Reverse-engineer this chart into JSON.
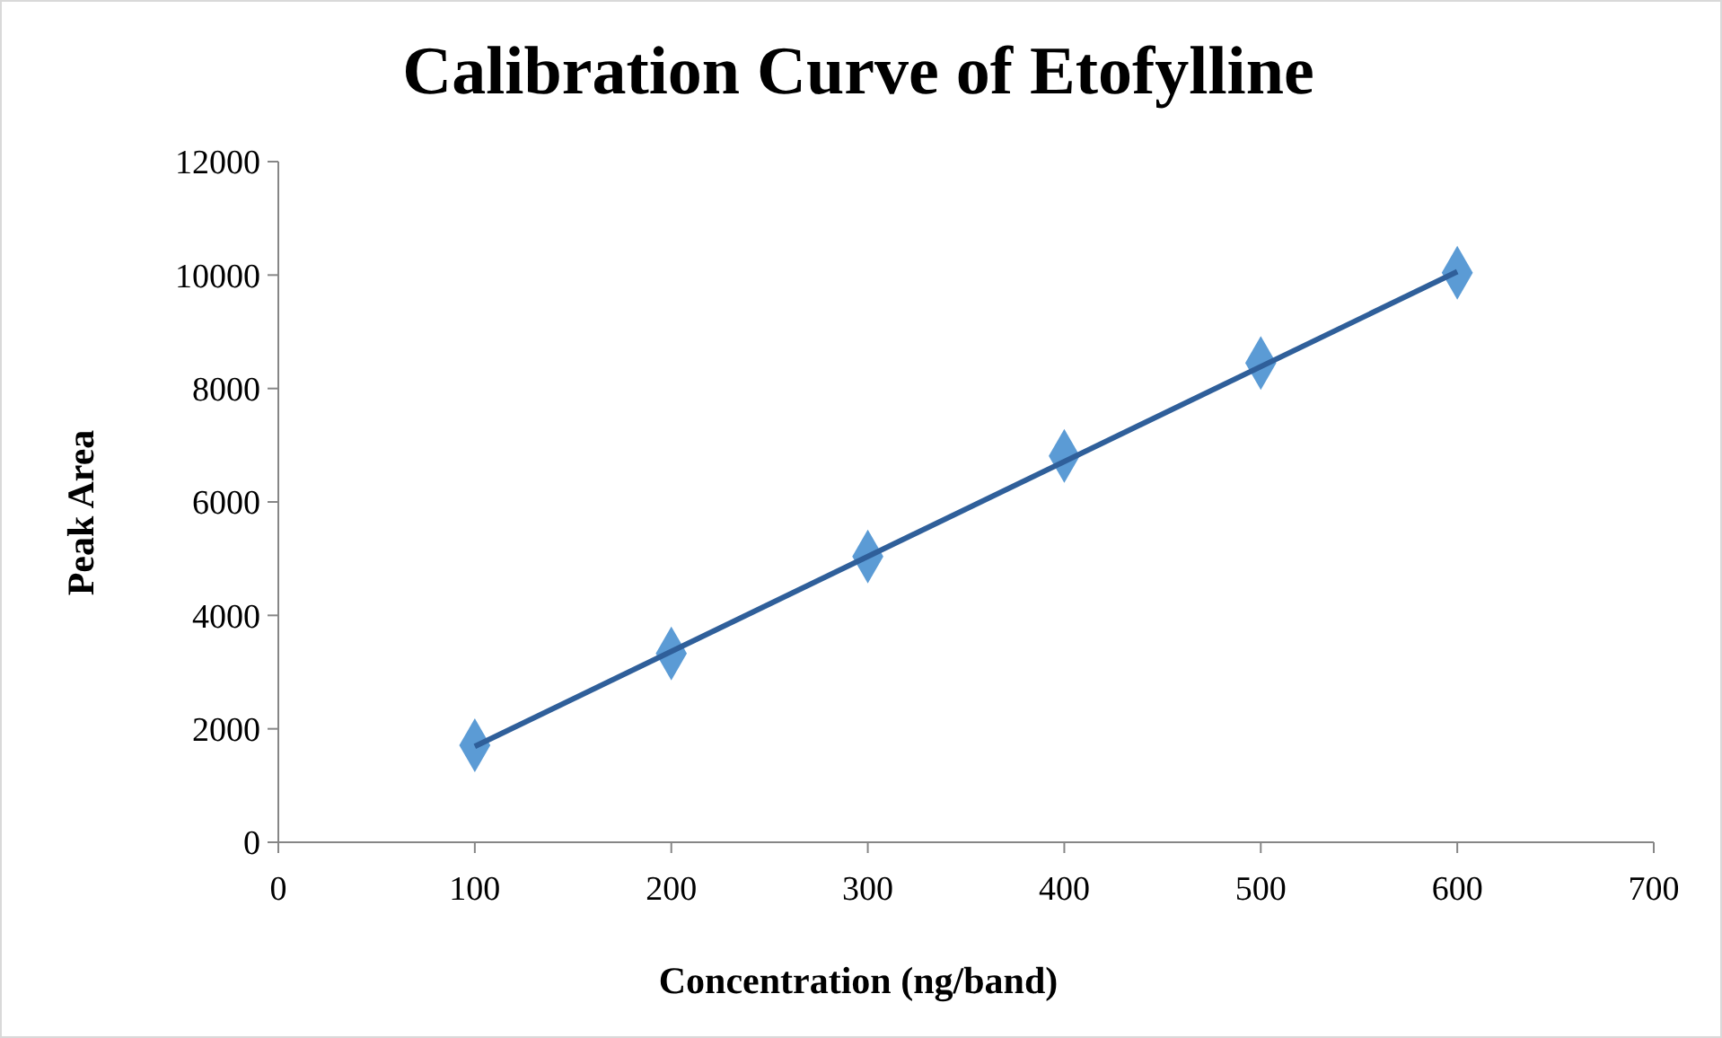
{
  "chart_data": {
    "type": "scatter",
    "title": "Calibration Curve of Etofylline",
    "xlabel": "Concentration (ng/band)",
    "ylabel": "Peak Area",
    "xlim": [
      0,
      700
    ],
    "xticks": [
      0,
      100,
      200,
      300,
      400,
      500,
      600,
      700
    ],
    "ylim": [
      0,
      12000
    ],
    "yticks": [
      0,
      2000,
      4000,
      6000,
      8000,
      10000,
      12000
    ],
    "series": [
      {
        "color": "#5b9bd5",
        "marker": "diamond",
        "x": [
          100,
          200,
          300,
          400,
          500,
          600
        ],
        "values": [
          1710,
          3330,
          5040,
          6810,
          8450,
          10040
        ]
      },
      {
        "type": "line",
        "color": "#2f5f9a",
        "marker": "none",
        "line_style": "solid",
        "x": [
          100,
          600
        ],
        "values": [
          1690,
          10060
        ]
      }
    ]
  }
}
